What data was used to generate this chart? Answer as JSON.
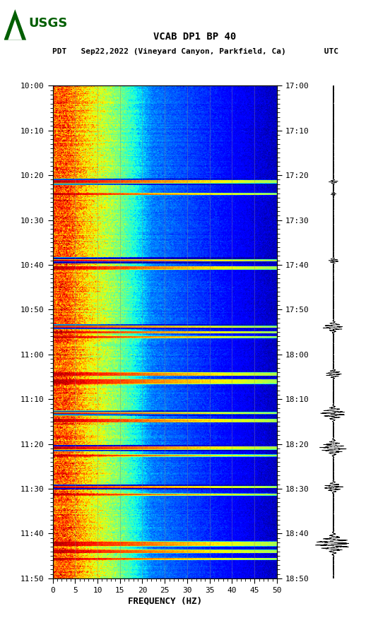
{
  "title_line1": "VCAB DP1 BP 40",
  "title_line2": "PDT   Sep22,2022 (Vineyard Canyon, Parkfield, Ca)        UTC",
  "xlabel": "FREQUENCY (HZ)",
  "freq_min": 0,
  "freq_max": 50,
  "left_yticks_labels": [
    "10:00",
    "10:10",
    "10:20",
    "10:30",
    "10:40",
    "10:50",
    "11:00",
    "11:10",
    "11:20",
    "11:30",
    "11:40",
    "11:50"
  ],
  "right_yticks_labels": [
    "17:00",
    "17:10",
    "17:20",
    "17:30",
    "17:40",
    "17:50",
    "18:00",
    "18:10",
    "18:20",
    "18:30",
    "18:40",
    "18:50"
  ],
  "xtick_labels": [
    "0",
    "5",
    "10",
    "15",
    "20",
    "25",
    "30",
    "35",
    "40",
    "45",
    "50"
  ],
  "background_color": "#ffffff",
  "fig_width": 5.52,
  "fig_height": 8.92,
  "dpi": 100,
  "usgs_logo_color": "#005e00",
  "n_time_steps": 720,
  "n_freq_steps": 500,
  "dark_event_times": [
    0.195,
    0.355,
    0.49,
    0.585,
    0.665,
    0.735,
    0.815,
    0.93
  ],
  "bright_event_times": [
    0.195,
    0.22,
    0.355,
    0.37,
    0.49,
    0.5,
    0.51,
    0.585,
    0.6,
    0.665,
    0.68,
    0.735,
    0.75,
    0.815,
    0.83,
    0.93,
    0.945,
    0.96
  ],
  "wave_event_times": [
    0.195,
    0.22,
    0.355,
    0.49,
    0.585,
    0.665,
    0.735,
    0.815,
    0.93
  ],
  "wave_amplitudes": [
    0.25,
    0.15,
    0.3,
    0.55,
    0.45,
    0.7,
    0.75,
    0.55,
    0.95
  ]
}
